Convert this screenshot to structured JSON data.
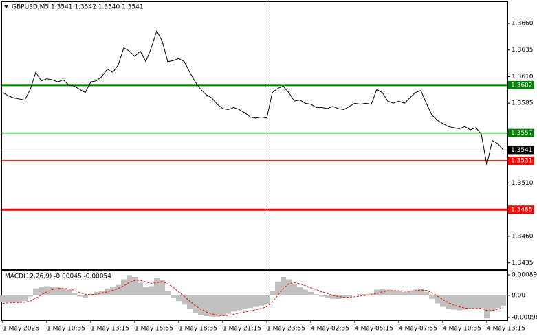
{
  "chart_data": [
    {
      "type": "line",
      "title": "GBPUSD,M5  1.3541 1.3542 1.3540 1.3541",
      "color": "#000000",
      "values": [
        1.3595,
        1.3592,
        1.359,
        1.3589,
        1.3588,
        1.3598,
        1.3614,
        1.3606,
        1.3608,
        1.3607,
        1.3605,
        1.3607,
        1.3602,
        1.3601,
        1.3598,
        1.3595,
        1.3605,
        1.3606,
        1.361,
        1.3617,
        1.3614,
        1.3621,
        1.3637,
        1.3634,
        1.3629,
        1.3634,
        1.3624,
        1.3637,
        1.3653,
        1.3643,
        1.3624,
        1.3625,
        1.3627,
        1.3624,
        1.3614,
        1.3605,
        1.3598,
        1.3593,
        1.359,
        1.3584,
        1.358,
        1.3579,
        1.3581,
        1.3579,
        1.3576,
        1.3572,
        1.3571,
        1.3572,
        1.3571,
        1.3595,
        1.3599,
        1.3601,
        1.3595,
        1.3587,
        1.3588,
        1.3585,
        1.3584,
        1.3581,
        1.3581,
        1.358,
        1.3582,
        1.358,
        1.3579,
        1.3582,
        1.3585,
        1.3584,
        1.3585,
        1.3584,
        1.3598,
        1.3595,
        1.3587,
        1.3585,
        1.3587,
        1.3585,
        1.359,
        1.3595,
        1.3597,
        1.3585,
        1.3574,
        1.3569,
        1.3566,
        1.3563,
        1.3562,
        1.3561,
        1.3563,
        1.356,
        1.3562,
        1.3556,
        1.3527,
        1.355,
        1.3547,
        1.3541
      ],
      "ylim": [
        1.3429,
        1.368
      ],
      "yticks": [
        {
          "value": 1.366,
          "label": "1.3660"
        },
        1.3635,
        {
          "value": 1.361,
          "label": "1.3610"
        },
        1.3585,
        {
          "value": 1.351,
          "label": "1.3510"
        },
        {
          "value": 1.346,
          "label": "1.3460"
        },
        1.3435
      ],
      "levels": [
        {
          "value": 1.3602,
          "color": "#008000"
        },
        {
          "value": 1.3557,
          "color": "#008000"
        },
        {
          "value": 1.3531,
          "color": "#ff0000"
        },
        {
          "value": 1.3485,
          "color": "#ff0000"
        }
      ],
      "current_price": 1.3541
    },
    {
      "type": "macd",
      "title": "MACD(12,26,9) -0.00045 -0.00054",
      "categories": [
        "1 May 2026",
        null,
        null,
        null,
        null,
        null,
        null,
        null,
        "1 May 10:35",
        null,
        null,
        null,
        null,
        null,
        null,
        null,
        "1 May 13:15",
        null,
        null,
        null,
        null,
        null,
        null,
        null,
        "1 May 15:55",
        null,
        null,
        null,
        null,
        null,
        null,
        null,
        "1 May 18:35",
        null,
        null,
        null,
        null,
        null,
        null,
        null,
        "1 May 21:15",
        null,
        null,
        null,
        null,
        null,
        null,
        null,
        "1 May 23:55",
        null,
        null,
        null,
        null,
        null,
        null,
        null,
        "4 May 02:35",
        null,
        null,
        null,
        null,
        null,
        null,
        null,
        "4 May 05:15",
        null,
        null,
        null,
        null,
        null,
        null,
        null,
        "4 May 07:55",
        null,
        null,
        null,
        null,
        null,
        null,
        null,
        "4 May 10:35",
        null,
        null,
        null,
        null,
        null,
        null,
        null,
        "4 May 13:15",
        null,
        null,
        null
      ],
      "series": [
        {
          "name": "MACD",
          "color": "#c0c0c0",
          "values": [
            -0.0003,
            -0.0003,
            -0.0003,
            -0.00032,
            -0.00025,
            -5e-05,
            0.0003,
            0.00035,
            0.0004,
            0.00038,
            0.00035,
            0.0003,
            0.00025,
            0.0001,
            -5e-05,
            -0.0001,
            5e-05,
            0.00015,
            0.0002,
            0.0003,
            0.00035,
            0.00045,
            0.0007,
            0.00088,
            0.0008,
            0.00055,
            0.00035,
            0.0004,
            0.00075,
            0.00065,
            0.0002,
            -0.0001,
            -0.00025,
            -0.0004,
            -0.0006,
            -0.00075,
            -0.00085,
            -0.0009,
            -0.00092,
            -0.00092,
            -0.0009,
            -0.0008,
            -0.0007,
            -0.00065,
            -0.0006,
            -0.00055,
            -0.0005,
            -0.00045,
            -0.0004,
            0.0002,
            0.0006,
            0.0008,
            0.0007,
            0.0005,
            0.00035,
            0.00025,
            0.00015,
            5e-05,
            -5e-05,
            -0.0001,
            -0.00015,
            -0.00015,
            -0.00012,
            -5e-05,
            0,
            5e-05,
            5e-05,
            8e-05,
            0.00025,
            0.00028,
            0.00025,
            0.0002,
            0.00018,
            0.00015,
            0.0002,
            0.00025,
            0.0003,
            0.00015,
            -0.00015,
            -0.00035,
            -0.0005,
            -0.0006,
            -0.00062,
            -0.00065,
            -0.00062,
            -0.0006,
            -0.00055,
            -0.00055,
            -0.001,
            -0.0007,
            -0.00055,
            -0.00045
          ]
        },
        {
          "name": "Signal",
          "color": "#ff0000",
          "values": [
            -0.00035,
            -0.00033,
            -0.00032,
            -0.00031,
            -0.0003,
            -0.00025,
            -0.00012,
            2e-05,
            0.00015,
            0.00025,
            0.0003,
            0.0003,
            0.00028,
            0.00022,
            0.00012,
            5e-05,
            3e-05,
            5e-05,
            0.0001,
            0.00015,
            0.00022,
            0.0003,
            0.00042,
            0.00055,
            0.00065,
            0.00065,
            0.00058,
            0.00052,
            0.00055,
            0.0006,
            0.0005,
            0.00035,
            0.00015,
            -5e-05,
            -0.00025,
            -0.00045,
            -0.0006,
            -0.00072,
            -0.0008,
            -0.00086,
            -0.00088,
            -0.00087,
            -0.00082,
            -0.00077,
            -0.00072,
            -0.00067,
            -0.00062,
            -0.00057,
            -0.0005,
            -0.0003,
            0,
            0.0003,
            0.0005,
            0.00055,
            0.0005,
            0.00042,
            0.00033,
            0.00025,
            0.00015,
            8e-05,
            0,
            -5e-05,
            -8e-05,
            -8e-05,
            -6e-05,
            -3e-05,
            0,
            2e-05,
            8e-05,
            0.00015,
            0.0002,
            0.00021,
            0.0002,
            0.00018,
            0.00018,
            0.0002,
            0.00023,
            0.00022,
            0.00012,
            -3e-05,
            -0.00018,
            -0.00032,
            -0.00042,
            -0.0005,
            -0.00055,
            -0.00057,
            -0.00057,
            -0.00056,
            -0.00065,
            -0.00066,
            -0.0006,
            -0.00054
          ]
        }
      ],
      "ylim": [
        -0.00108,
        0.00107
      ],
      "yticks": [
        0.00089,
        {
          "value": 0,
          "label": "0.00"
        },
        -0.00096
      ]
    }
  ]
}
